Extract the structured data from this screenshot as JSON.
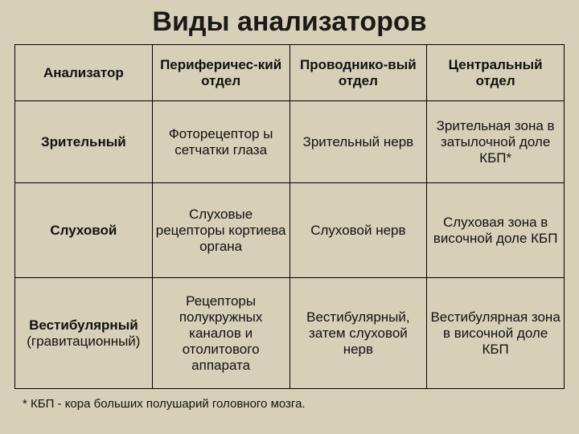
{
  "title": "Виды анализаторов",
  "headers": {
    "col1": "Анализатор",
    "col2": "Периферичес-кий отдел",
    "col3": "Проводнико-вый отдел",
    "col4": "Центральный отдел"
  },
  "rows": [
    {
      "name": "Зрительный",
      "name_sub": "",
      "peripheral": "Фоторецептор ы сетчатки глаза",
      "conductive": "Зрительный нерв",
      "central": "Зрительная зона в затылочной доле КБП*"
    },
    {
      "name": "Слуховой",
      "name_sub": "",
      "peripheral": "Слуховые рецепторы кортиева органа",
      "conductive": "Слуховой нерв",
      "central": "Слуховая зона в височной доле КБП"
    },
    {
      "name": "Вестибулярный",
      "name_sub": "(гравитационный)",
      "peripheral": "Рецепторы полукружных каналов и отолитового аппарата",
      "conductive": "Вестибулярный, затем слуховой нерв",
      "central": "Вестибулярная зона в височной доле КБП"
    }
  ],
  "footnote": "* КБП - кора больших полушарий головного мозга.",
  "colors": {
    "background": "#d8cfb8",
    "text": "#111111",
    "border": "#000000"
  },
  "typography": {
    "title_fontsize": 34,
    "header_fontsize": 17,
    "cell_fontsize": 17,
    "footnote_fontsize": 15,
    "font_family": "Arial"
  }
}
